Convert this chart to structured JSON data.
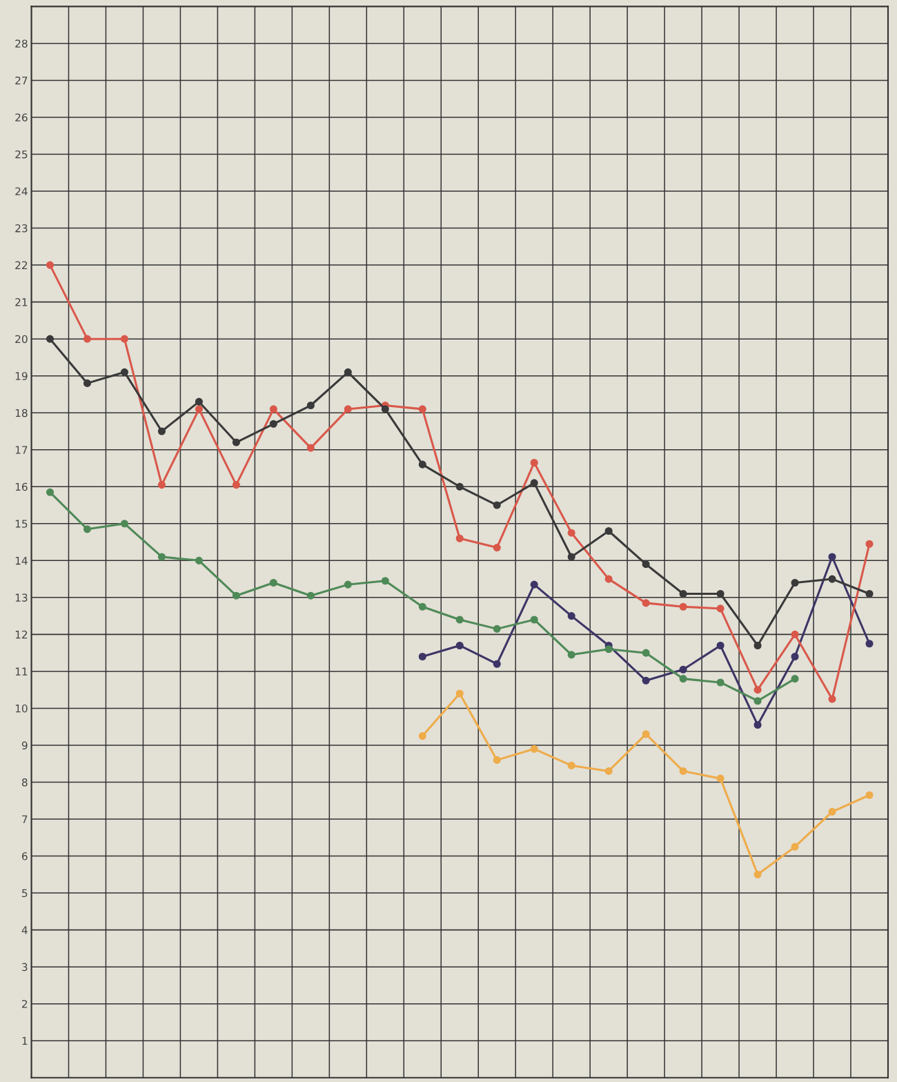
{
  "chart_data": {
    "type": "line",
    "categories": [
      null,
      null,
      null,
      null,
      null,
      null,
      null,
      null,
      null,
      null,
      null,
      null,
      null,
      null,
      null,
      null,
      null,
      null,
      null,
      null,
      null,
      null,
      null
    ],
    "series": [
      {
        "color": "#3a3a3a",
        "values": [
          20.0,
          18.8,
          19.1,
          17.5,
          18.3,
          17.2,
          17.7,
          18.2,
          19.1,
          18.1,
          16.6,
          16.0,
          15.5,
          16.1,
          14.1,
          14.8,
          13.9,
          13.1,
          13.1,
          11.7,
          13.4,
          13.5,
          13.1
        ]
      },
      {
        "color": "#d9584a",
        "values": [
          22.0,
          20.0,
          20.0,
          16.05,
          18.1,
          16.05,
          18.1,
          17.05,
          18.1,
          18.2,
          18.1,
          14.6,
          14.35,
          16.65,
          14.75,
          13.5,
          12.85,
          12.75,
          12.7,
          10.5,
          12.0,
          10.25,
          14.45
        ]
      },
      {
        "color": "#4e8a57",
        "values": [
          15.85,
          14.85,
          15.0,
          14.1,
          14.0,
          13.05,
          13.4,
          13.05,
          13.35,
          13.45,
          12.75,
          12.4,
          12.15,
          12.4,
          11.45,
          11.6,
          11.5,
          10.8,
          10.7,
          10.2,
          10.8,
          null,
          null
        ]
      },
      {
        "color": "#3d3566",
        "values": [
          null,
          null,
          null,
          null,
          null,
          null,
          null,
          null,
          null,
          null,
          11.4,
          11.7,
          11.2,
          13.35,
          12.5,
          11.7,
          10.75,
          11.05,
          11.7,
          9.55,
          11.4,
          14.1,
          11.75
        ]
      },
      {
        "color": "#eeac4a",
        "values": [
          null,
          null,
          null,
          null,
          null,
          null,
          null,
          null,
          null,
          null,
          9.25,
          10.4,
          8.6,
          8.9,
          8.45,
          8.3,
          9.3,
          8.3,
          8.1,
          5.5,
          6.25,
          7.2,
          7.65
        ]
      }
    ],
    "ylim": [
      0,
      29
    ],
    "yticks": [
      1,
      2,
      3,
      4,
      5,
      6,
      7,
      8,
      9,
      10,
      11,
      12,
      13,
      14,
      15,
      16,
      17,
      18,
      19,
      20,
      21,
      22,
      23,
      24,
      25,
      26,
      27,
      28
    ],
    "grid": true,
    "marker": "circle",
    "line_style": "solid"
  }
}
